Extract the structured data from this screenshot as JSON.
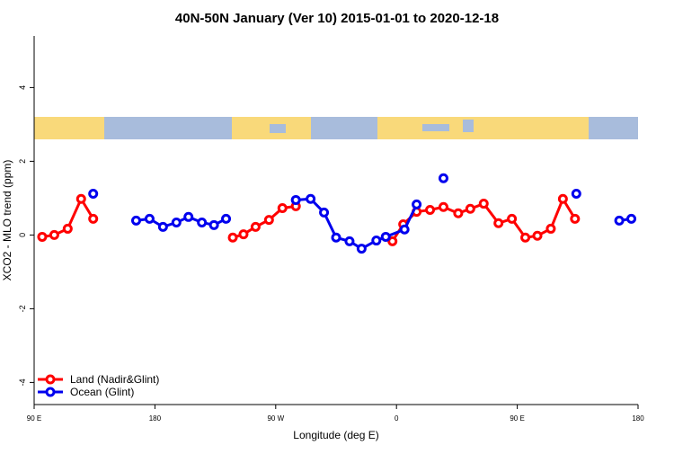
{
  "chart_data": {
    "type": "line",
    "title": "40N-50N January (Ver 10)   2015-01-01 to 2020-12-18",
    "x_label": "Longitude (deg E)",
    "y_label": "XCO2 - MLO trend (ppm)",
    "xlim": [
      90,
      540
    ],
    "xticks": [
      {
        "value": 90,
        "label": "90 E"
      },
      180,
      {
        "value": 270,
        "label": "90 W"
      },
      {
        "value": 360,
        "label": "0"
      },
      {
        "value": 450,
        "label": "90 E"
      },
      {
        "value": 540,
        "label": "180"
      }
    ],
    "ylim": [
      -4.6,
      5.4
    ],
    "yticks": [
      -4,
      -2,
      0,
      2,
      4
    ],
    "legend": "bottom-left",
    "series": [
      {
        "name": "Land (Nadir&Glint)",
        "color": "#ff0000",
        "x": [
          96,
          105,
          115,
          125,
          134,
          190,
          238,
          246,
          255,
          265,
          275,
          285,
          320,
          357,
          365,
          375,
          385,
          395,
          406,
          415,
          425,
          436,
          446,
          456,
          465,
          475,
          484,
          493
        ],
        "values": [
          -0.05,
          0.0,
          0.17,
          0.98,
          0.44,
          null,
          -0.07,
          0.02,
          0.22,
          0.41,
          0.73,
          0.78,
          null,
          -0.17,
          0.29,
          0.63,
          0.68,
          0.76,
          0.59,
          0.71,
          0.85,
          0.32,
          0.44,
          -0.07,
          -0.02,
          0.17,
          0.98,
          0.44
        ]
      },
      {
        "name": "Ocean (Glint)",
        "color": "#0000ee",
        "x": [
          134,
          150,
          166,
          176,
          186,
          196,
          205,
          215,
          224,
          233,
          260,
          285,
          296,
          306,
          315,
          325,
          334,
          345,
          352,
          366,
          375,
          385,
          395,
          420,
          494,
          520,
          526,
          535
        ],
        "values": [
          1.12,
          null,
          0.39,
          0.44,
          0.22,
          0.34,
          0.49,
          0.34,
          0.27,
          0.44,
          null,
          0.95,
          0.98,
          0.61,
          -0.07,
          -0.17,
          -0.37,
          -0.15,
          -0.05,
          0.15,
          0.83,
          null,
          1.54,
          null,
          1.12,
          null,
          0.39,
          0.44
        ]
      }
    ]
  }
}
